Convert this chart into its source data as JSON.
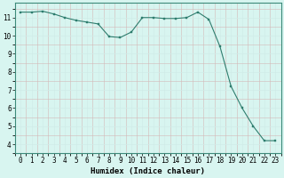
{
  "x": [
    0,
    1,
    2,
    3,
    4,
    5,
    6,
    7,
    8,
    9,
    10,
    11,
    12,
    13,
    14,
    15,
    16,
    17,
    18,
    19,
    20,
    21,
    22,
    23
  ],
  "y": [
    11.3,
    11.3,
    11.35,
    11.2,
    11.0,
    10.85,
    10.75,
    10.65,
    9.95,
    9.9,
    10.2,
    11.0,
    11.0,
    10.95,
    10.95,
    11.0,
    11.3,
    10.9,
    9.4,
    7.2,
    6.0,
    5.0,
    4.2,
    4.2
  ],
  "line_color": "#2e7d6e",
  "marker_color": "#2e7d6e",
  "bg_color": "#d8f5f0",
  "grid_color_major": "#b8ddd6",
  "grid_color_minor": "#d0ece8",
  "xlabel": "Humidex (Indice chaleur)",
  "xlabel_fontsize": 6.5,
  "tick_fontsize": 5.5,
  "ylim": [
    3.5,
    11.8
  ],
  "xlim": [
    -0.5,
    23.5
  ],
  "yticks": [
    4,
    5,
    6,
    7,
    8,
    9,
    10,
    11
  ],
  "xticks": [
    0,
    1,
    2,
    3,
    4,
    5,
    6,
    7,
    8,
    9,
    10,
    11,
    12,
    13,
    14,
    15,
    16,
    17,
    18,
    19,
    20,
    21,
    22,
    23
  ]
}
